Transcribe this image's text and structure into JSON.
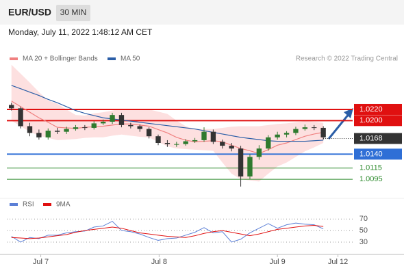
{
  "header": {
    "symbol": "EUR/USD",
    "interval": "30 MIN",
    "timestamp": "Monday, July 11, 2022 1:48:12 AM CET"
  },
  "chart_data": {
    "type": "candlestick",
    "credit": "Research © 2022 Trading Central",
    "up_color": "#2f7a2f",
    "down_color": "#333333",
    "xlim": [
      -0.5,
      37.2
    ],
    "ylim": [
      1.0067,
      1.0324
    ],
    "xticks": [
      {
        "value": 3.2,
        "label": "Jul 7"
      },
      {
        "value": 16.1,
        "label": "Jul 8"
      },
      {
        "value": 29,
        "label": "Jul 9"
      },
      {
        "value": 35.6,
        "label": "Jul 12"
      }
    ],
    "open": [
      1.0228,
      1.0222,
      1.019,
      1.0178,
      1.017,
      1.0182,
      1.018,
      1.0185,
      1.0188,
      1.0187,
      1.0195,
      1.0198,
      1.021,
      1.0192,
      1.019,
      1.0185,
      1.0172,
      1.016,
      1.0158,
      1.0158,
      1.0163,
      1.0165,
      1.018,
      1.0162,
      1.0155,
      1.015,
      1.01,
      1.0135,
      1.015,
      1.017,
      1.0175,
      1.0178,
      1.0185,
      1.0188,
      1.0187
    ],
    "high": [
      1.0232,
      1.0225,
      1.0196,
      1.0184,
      1.0186,
      1.0187,
      1.0189,
      1.0192,
      1.0192,
      1.0199,
      1.0202,
      1.0214,
      1.0214,
      1.0196,
      1.0193,
      1.0188,
      1.0175,
      1.0165,
      1.0162,
      1.0167,
      1.0169,
      1.0188,
      1.0184,
      1.0166,
      1.016,
      1.0155,
      1.014,
      1.0156,
      1.0174,
      1.018,
      1.0181,
      1.0189,
      1.0193,
      1.0192,
      1.019
    ],
    "low": [
      1.0218,
      1.0186,
      1.0172,
      1.0166,
      1.0166,
      1.0176,
      1.0176,
      1.0182,
      1.0183,
      1.0184,
      1.0192,
      1.0194,
      1.0188,
      1.0186,
      1.018,
      1.0168,
      1.0156,
      1.0153,
      1.0153,
      1.0155,
      1.016,
      1.0162,
      1.0158,
      1.015,
      1.0145,
      1.0082,
      1.0095,
      1.013,
      1.0146,
      1.0166,
      1.017,
      1.0174,
      1.0182,
      1.0183,
      1.0166
    ],
    "close": [
      1.0222,
      1.019,
      1.0178,
      1.017,
      1.0182,
      1.018,
      1.0185,
      1.0188,
      1.0187,
      1.0195,
      1.0198,
      1.021,
      1.0192,
      1.019,
      1.0185,
      1.0172,
      1.016,
      1.0158,
      1.0158,
      1.0163,
      1.0165,
      1.018,
      1.0162,
      1.0155,
      1.015,
      1.01,
      1.0135,
      1.015,
      1.017,
      1.0175,
      1.0178,
      1.0185,
      1.0188,
      1.0187,
      1.017
    ],
    "series": [
      {
        "name": "MA 20 + Bollinger Bands",
        "color": "#f08080",
        "band_color": "#fde0e0",
        "values": [
          1.0235,
          1.0225,
          1.0215,
          1.0205,
          1.0197,
          1.0188,
          1.0187,
          1.0186,
          1.0188,
          1.0189,
          1.019,
          1.0192,
          1.0194,
          1.0194,
          1.0192,
          1.019,
          1.0184,
          1.0178,
          1.017,
          1.0165,
          1.0162,
          1.0163,
          1.0164,
          1.0162,
          1.0156,
          1.015,
          1.0146,
          1.0141,
          1.0148,
          1.0156,
          1.016,
          1.0166,
          1.0172,
          1.0176,
          1.0179
        ],
        "upper": [
          1.03,
          1.0284,
          1.0268,
          1.0251,
          1.0236,
          1.023,
          1.022,
          1.021,
          1.0209,
          1.0213,
          1.0215,
          1.0218,
          1.0221,
          1.0221,
          1.022,
          1.022,
          1.0216,
          1.0212,
          1.02,
          1.019,
          1.0185,
          1.0185,
          1.0185,
          1.0187,
          1.0189,
          1.019,
          1.019,
          1.019,
          1.0192,
          1.0194,
          1.0195,
          1.0197,
          1.0199,
          1.0198,
          1.0196
        ],
        "lower": [
          1.02,
          1.019,
          1.018,
          1.0173,
          1.0169,
          1.0165,
          1.0166,
          1.0167,
          1.0169,
          1.017,
          1.017,
          1.0173,
          1.0175,
          1.0173,
          1.0171,
          1.017,
          1.0162,
          1.0154,
          1.015,
          1.0149,
          1.0148,
          1.0147,
          1.0146,
          1.0125,
          1.0105,
          1.0095,
          1.0093,
          1.0091,
          1.0105,
          1.0118,
          1.0125,
          1.0135,
          1.0145,
          1.0152,
          1.016
        ]
      },
      {
        "name": "MA 50",
        "color": "#2b5ea7",
        "values": [
          1.0263,
          1.0257,
          1.0251,
          1.0245,
          1.0238,
          1.0232,
          1.0225,
          1.0218,
          1.0213,
          1.0209,
          1.0205,
          1.0203,
          1.0201,
          1.0199,
          1.0197,
          1.0195,
          1.0193,
          1.0191,
          1.0189,
          1.0187,
          1.0185,
          1.0182,
          1.0179,
          1.0176,
          1.0173,
          1.017,
          1.0168,
          1.0166,
          1.0164,
          1.0163,
          1.0163,
          1.0163,
          1.0163,
          1.0164,
          1.0165
        ]
      }
    ],
    "levels": [
      {
        "value": 1.022,
        "label": "1.0220",
        "color": "#e01010",
        "boxed": true,
        "dashed": false
      },
      {
        "value": 1.02,
        "label": "1.0200",
        "color": "#e01010",
        "boxed": true,
        "dashed": false
      },
      {
        "value": 1.0168,
        "label": "1.0168",
        "color": "#333333",
        "boxed": true,
        "dashed": true
      },
      {
        "value": 1.014,
        "label": "1.0140",
        "color": "#2f6fd6",
        "boxed": true,
        "dashed": false
      },
      {
        "value": 1.0115,
        "label": "1.0115",
        "color": "#2e8b2e",
        "boxed": false,
        "dashed": false
      },
      {
        "value": 1.0095,
        "label": "1.0095",
        "color": "#2e8b2e",
        "boxed": false,
        "dashed": false
      }
    ],
    "rsi": {
      "ylim": [
        11,
        88
      ],
      "yticks": [
        70,
        50,
        30
      ],
      "series": [
        {
          "name": "RSI",
          "color": "#5b7fd6",
          "values": [
            40,
            30,
            38,
            36,
            42,
            42,
            46,
            48,
            49,
            56,
            58,
            66,
            50,
            48,
            44,
            38,
            33,
            36,
            37,
            42,
            47,
            55,
            46,
            48,
            30,
            35,
            46,
            54,
            62,
            54,
            60,
            63,
            61,
            60,
            53
          ]
        },
        {
          "name": "9MA",
          "color": "#e01010",
          "values": [
            38,
            37,
            36,
            37,
            39,
            41,
            43,
            47,
            50,
            52,
            54,
            56,
            54,
            50,
            46,
            44,
            42,
            40,
            39,
            38,
            41,
            45,
            48,
            50,
            47,
            44,
            41,
            44,
            48,
            52,
            54,
            56,
            58,
            59,
            57
          ]
        }
      ]
    }
  }
}
